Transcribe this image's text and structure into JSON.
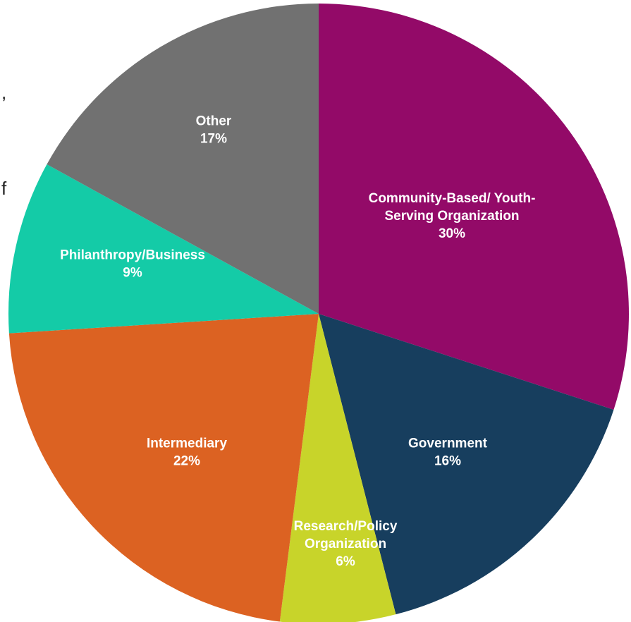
{
  "chart_data": {
    "type": "pie",
    "start_angle_deg": 0,
    "direction": "clockwise",
    "slices": [
      {
        "label": [
          "Community-Based/ Youth-",
          "Serving Organization"
        ],
        "value": 30,
        "display": "30%",
        "color": "#930A68"
      },
      {
        "label": [
          "Government"
        ],
        "value": 16,
        "display": "16%",
        "color": "#173E5E"
      },
      {
        "label": [
          "Research/Policy",
          "Organization"
        ],
        "value": 6,
        "display": "6%",
        "color": "#C8D42A"
      },
      {
        "label": [
          "Intermediary"
        ],
        "value": 22,
        "display": "22%",
        "color": "#DC6222"
      },
      {
        "label": [
          "Philanthropy/Business"
        ],
        "value": 9,
        "display": "9%",
        "color": "#14CBA7"
      },
      {
        "label": [
          "Other"
        ],
        "value": 17,
        "display": "17%",
        "color": "#717171"
      }
    ]
  },
  "page_fragments": {
    "comma": ",",
    "letter_f": "f"
  }
}
